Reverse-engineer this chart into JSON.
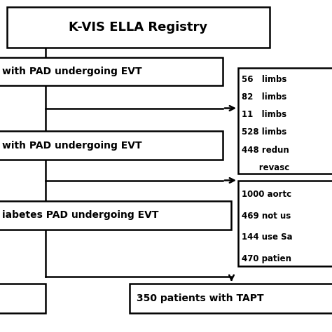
{
  "title": "K-VIS ELLA Registry",
  "box1_text": "with PAD undergoing EVT",
  "box2_text": "with PAD undergoing EVT",
  "box3_text": "iabetes PAD undergoing EVT",
  "box4_text": "350 patients with TAPT",
  "side_box1_lines": [
    "56   limbs",
    "82   limbs",
    "11   limbs",
    "528 limbs",
    "448 redun",
    "      revasc"
  ],
  "side_box2_lines": [
    "1000 aortc",
    "469 not us",
    "144 use Sa",
    "470 patien"
  ],
  "bg_color": "#ffffff",
  "box_edge_color": "#000000",
  "text_color": "#000000",
  "figsize": [
    4.74,
    4.74
  ],
  "dpi": 100
}
